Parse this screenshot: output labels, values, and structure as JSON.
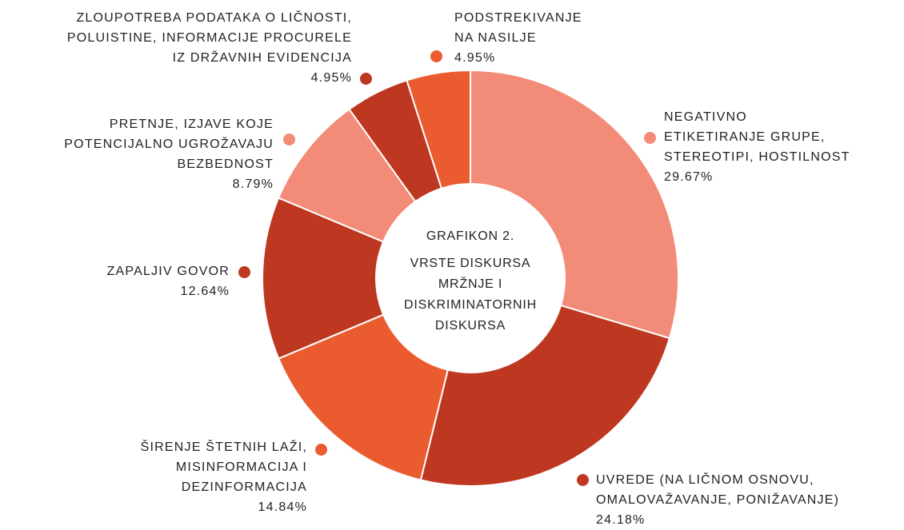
{
  "chart_data": {
    "type": "donut",
    "title": "GRAFIKON 2.",
    "subtitle": "VRSTE DISKURSA MRŽNJE I DISKRIMINATORNIH DISKURSA",
    "categories": [
      "NEGATIVNO\nETIKETIRANJE GRUPE,\nSTEREOTIPI, HOSTILNOST",
      "UVREDE (NA LIČNOM OSNOVU,\nOMALOVAŽAVANJE, PONIŽAVANJE)",
      "ŠIRENJE ŠTETNIH LAŽI,\nMISINFORMACIJA I\nDEZINFORMACIJA",
      "ZAPALJIV GOVOR",
      "PRETNJE, IZJAVE KOJE\nPOTENCIJALNO UGROŽAVAJU\nBEZBEDNOST",
      "ZLOUPOTREBA PODATAKA O LIČNOSTI,\nPOLUISTINE, INFORMACIJE PROCURELE\nIZ DRŽAVNIH EVIDENCIJA",
      "PODSTREKIVANJE\nNA NASILJE"
    ],
    "values": [
      29.67,
      24.18,
      14.84,
      12.64,
      8.79,
      4.95,
      4.95
    ],
    "value_labels": [
      "29.67%",
      "24.18%",
      "14.84%",
      "12.64%",
      "8.79%",
      "4.95%",
      "4.95%"
    ],
    "colors": [
      "#f28c78",
      "#be3821",
      "#ea5c2f",
      "#be3821",
      "#f28c78",
      "#be3821",
      "#ea5c2f"
    ]
  }
}
